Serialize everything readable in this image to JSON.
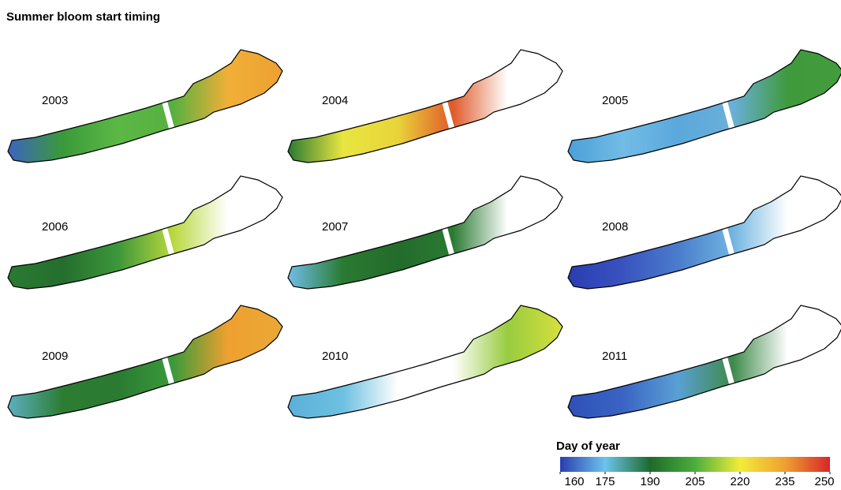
{
  "title": "Summer bloom start timing",
  "panels": [
    {
      "year": "2003"
    },
    {
      "year": "2004"
    },
    {
      "year": "2005"
    },
    {
      "year": "2006"
    },
    {
      "year": "2007"
    },
    {
      "year": "2008"
    },
    {
      "year": "2009"
    },
    {
      "year": "2010"
    },
    {
      "year": "2011"
    }
  ],
  "colorbar": {
    "title": "Day of year",
    "lim": [
      160,
      250
    ],
    "ticks": [
      160,
      175,
      190,
      205,
      220,
      235,
      250
    ],
    "colors": [
      "#2a3db0",
      "#6cc4ec",
      "#1d6a2b",
      "#4cae3c",
      "#f2ec3a",
      "#eea030",
      "#d8262a"
    ]
  }
}
